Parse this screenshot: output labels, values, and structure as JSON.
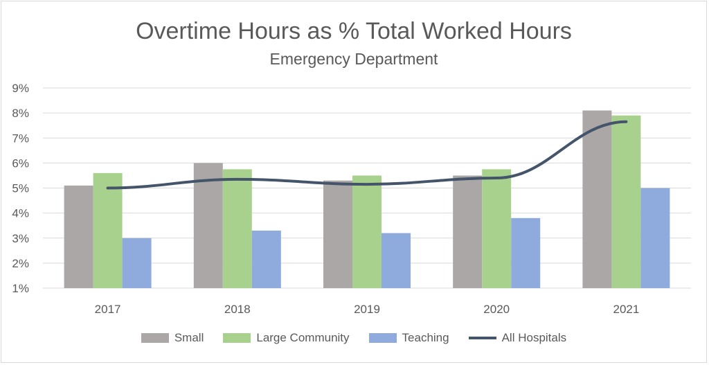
{
  "chart_data": {
    "type": "bar",
    "title": "Overtime Hours as % Total Worked Hours",
    "subtitle": "Emergency Department",
    "categories": [
      "2017",
      "2018",
      "2019",
      "2020",
      "2021"
    ],
    "ylim": [
      1,
      9
    ],
    "yticks": [
      "1%",
      "2%",
      "3%",
      "4%",
      "5%",
      "6%",
      "7%",
      "8%",
      "9%"
    ],
    "grid": true,
    "legend_position": "bottom",
    "series": [
      {
        "name": "Small",
        "type": "bar",
        "color": "#aca7a7",
        "values": [
          5.1,
          6.0,
          5.3,
          5.5,
          8.1
        ]
      },
      {
        "name": "Large Community",
        "type": "bar",
        "color": "#a9d18e",
        "values": [
          5.6,
          5.75,
          5.5,
          5.75,
          7.9
        ]
      },
      {
        "name": "Teaching",
        "type": "bar",
        "color": "#8faadc",
        "values": [
          3.0,
          3.3,
          3.2,
          3.8,
          5.0
        ]
      },
      {
        "name": "All Hospitals",
        "type": "line",
        "color": "#44546a",
        "values": [
          5.0,
          5.35,
          5.15,
          5.4,
          7.65
        ]
      }
    ]
  }
}
